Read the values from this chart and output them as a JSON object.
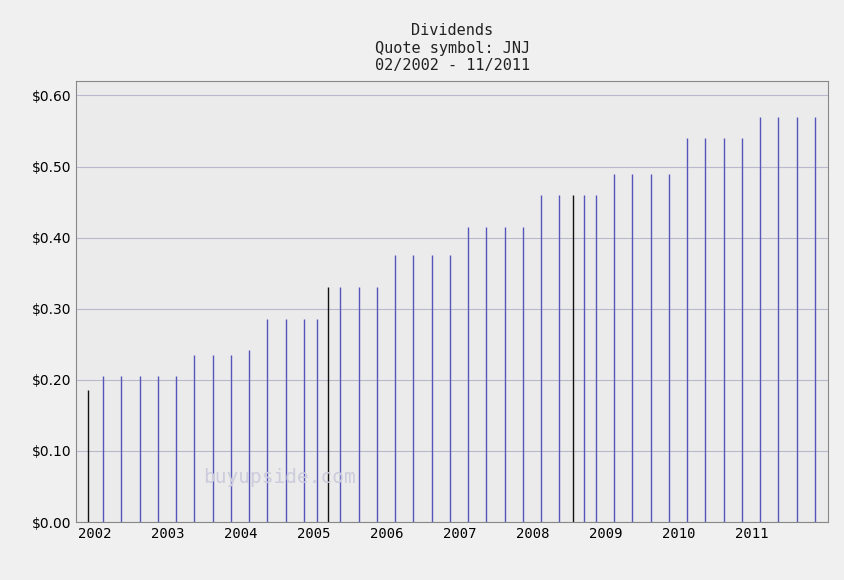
{
  "title_line1": "Dividends",
  "title_line2": "Quote symbol: JNJ",
  "title_line3": "02/2002 - 11/2011",
  "figure_bg_color": "#f0f0f0",
  "plot_bg_color": "#ebebeb",
  "ylim": [
    0.0,
    0.62
  ],
  "yticks": [
    0.0,
    0.1,
    0.2,
    0.3,
    0.4,
    0.5,
    0.6
  ],
  "bar_color_blue": "#5555bb",
  "bar_color_black": "#111111",
  "dividends": [
    {
      "date": 2001.92,
      "value": 0.185,
      "color": "black"
    },
    {
      "date": 2002.12,
      "value": 0.205,
      "color": "blue"
    },
    {
      "date": 2002.37,
      "value": 0.205,
      "color": "blue"
    },
    {
      "date": 2002.62,
      "value": 0.205,
      "color": "blue"
    },
    {
      "date": 2002.87,
      "value": 0.205,
      "color": "blue"
    },
    {
      "date": 2003.12,
      "value": 0.205,
      "color": "blue"
    },
    {
      "date": 2003.37,
      "value": 0.235,
      "color": "blue"
    },
    {
      "date": 2003.62,
      "value": 0.235,
      "color": "blue"
    },
    {
      "date": 2003.87,
      "value": 0.235,
      "color": "blue"
    },
    {
      "date": 2004.12,
      "value": 0.242,
      "color": "blue"
    },
    {
      "date": 2004.37,
      "value": 0.285,
      "color": "blue"
    },
    {
      "date": 2004.62,
      "value": 0.285,
      "color": "blue"
    },
    {
      "date": 2004.87,
      "value": 0.285,
      "color": "blue"
    },
    {
      "date": 2005.05,
      "value": 0.285,
      "color": "blue"
    },
    {
      "date": 2005.2,
      "value": 0.33,
      "color": "black"
    },
    {
      "date": 2005.37,
      "value": 0.33,
      "color": "blue"
    },
    {
      "date": 2005.62,
      "value": 0.33,
      "color": "blue"
    },
    {
      "date": 2005.87,
      "value": 0.33,
      "color": "blue"
    },
    {
      "date": 2006.12,
      "value": 0.375,
      "color": "blue"
    },
    {
      "date": 2006.37,
      "value": 0.375,
      "color": "blue"
    },
    {
      "date": 2006.62,
      "value": 0.375,
      "color": "blue"
    },
    {
      "date": 2006.87,
      "value": 0.375,
      "color": "blue"
    },
    {
      "date": 2007.12,
      "value": 0.415,
      "color": "blue"
    },
    {
      "date": 2007.37,
      "value": 0.415,
      "color": "blue"
    },
    {
      "date": 2007.62,
      "value": 0.415,
      "color": "blue"
    },
    {
      "date": 2007.87,
      "value": 0.415,
      "color": "blue"
    },
    {
      "date": 2008.12,
      "value": 0.46,
      "color": "blue"
    },
    {
      "date": 2008.37,
      "value": 0.46,
      "color": "blue"
    },
    {
      "date": 2008.55,
      "value": 0.46,
      "color": "black"
    },
    {
      "date": 2008.7,
      "value": 0.46,
      "color": "blue"
    },
    {
      "date": 2008.87,
      "value": 0.46,
      "color": "blue"
    },
    {
      "date": 2009.12,
      "value": 0.49,
      "color": "blue"
    },
    {
      "date": 2009.37,
      "value": 0.49,
      "color": "blue"
    },
    {
      "date": 2009.62,
      "value": 0.49,
      "color": "blue"
    },
    {
      "date": 2009.87,
      "value": 0.49,
      "color": "blue"
    },
    {
      "date": 2010.12,
      "value": 0.54,
      "color": "blue"
    },
    {
      "date": 2010.37,
      "value": 0.54,
      "color": "blue"
    },
    {
      "date": 2010.62,
      "value": 0.54,
      "color": "blue"
    },
    {
      "date": 2010.87,
      "value": 0.54,
      "color": "blue"
    },
    {
      "date": 2011.12,
      "value": 0.57,
      "color": "blue"
    },
    {
      "date": 2011.37,
      "value": 0.57,
      "color": "blue"
    },
    {
      "date": 2011.62,
      "value": 0.57,
      "color": "blue"
    },
    {
      "date": 2011.87,
      "value": 0.57,
      "color": "blue"
    }
  ],
  "xlim": [
    2001.75,
    2012.05
  ],
  "xticks": [
    2002,
    2003,
    2004,
    2005,
    2006,
    2007,
    2008,
    2009,
    2010,
    2011
  ],
  "grid_color": "#9999bb",
  "grid_alpha": 0.6,
  "line_width": 1.0,
  "watermark": "buyupside.com",
  "watermark_color": "#ccccdd",
  "watermark_fontsize": 14,
  "title_fontsize": 11,
  "tick_fontsize": 10
}
